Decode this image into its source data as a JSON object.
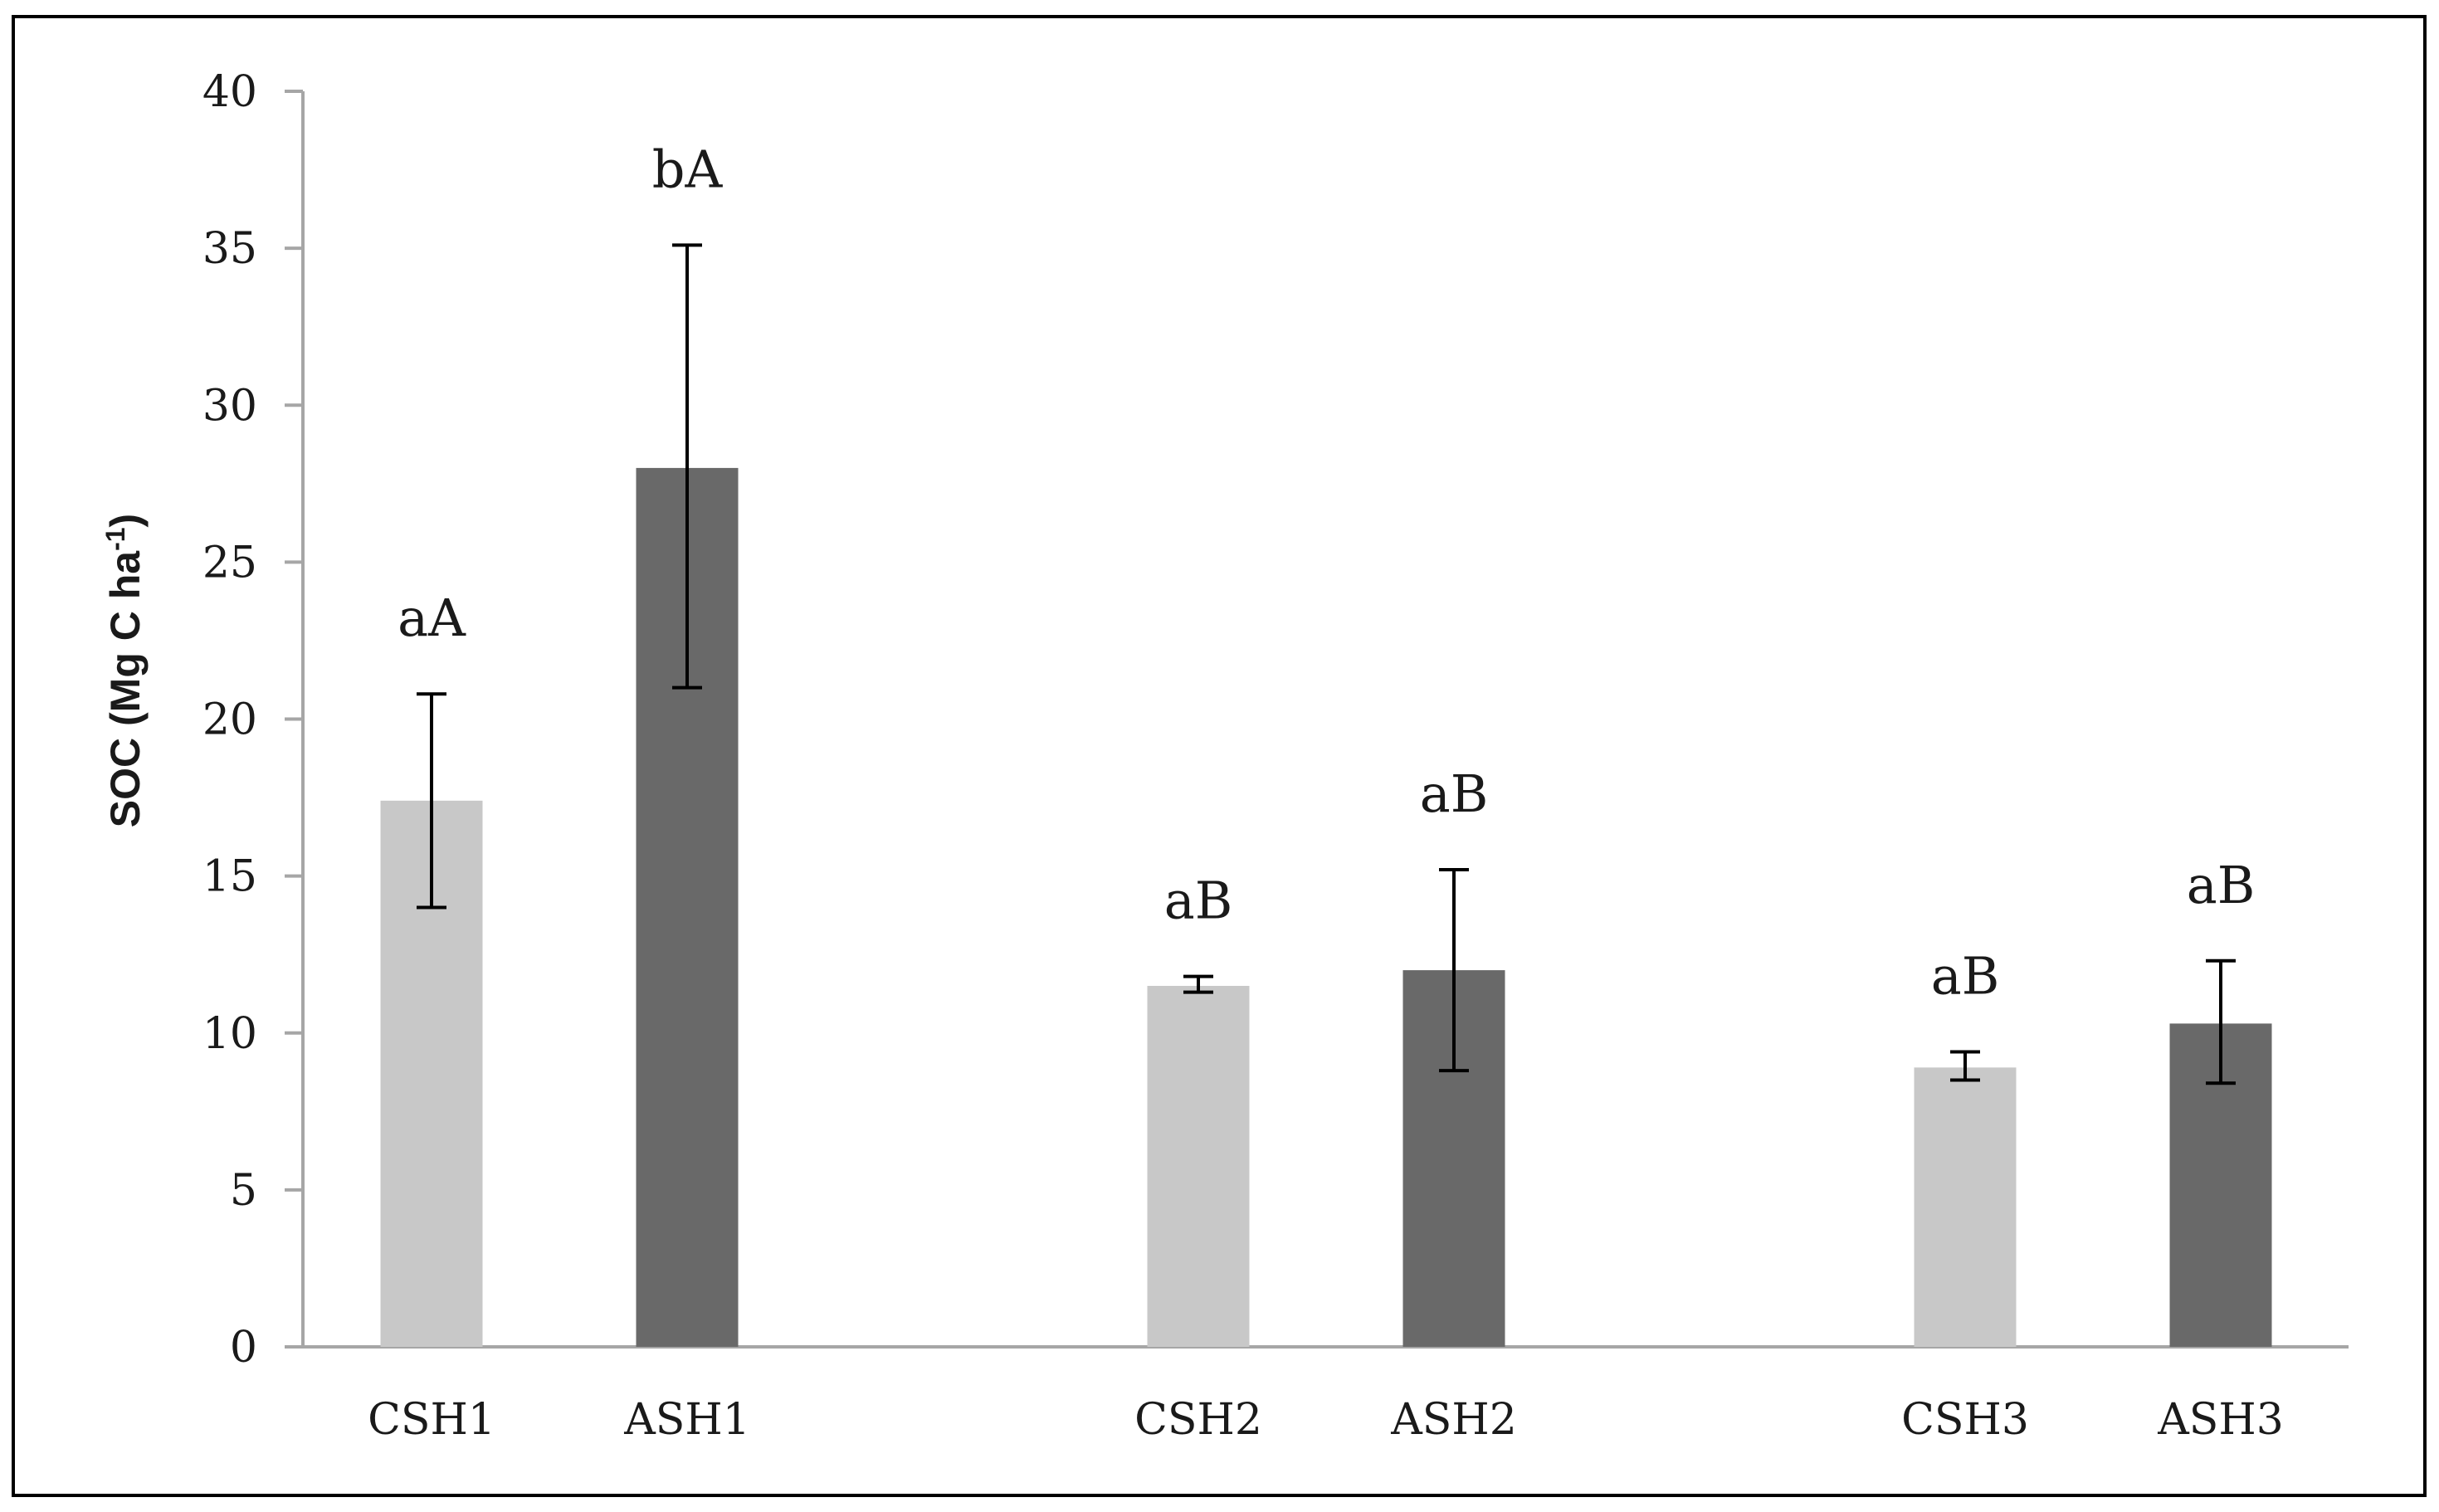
{
  "chart_data": {
    "type": "bar",
    "categories": [
      "CSH1",
      "ASH1",
      "CSH2",
      "ASH2",
      "CSH3",
      "ASH3"
    ],
    "values": [
      17.4,
      28.0,
      11.5,
      12.0,
      8.9,
      10.3
    ],
    "error_low": [
      14.0,
      21.0,
      11.3,
      8.8,
      8.5,
      8.4
    ],
    "error_high": [
      20.8,
      35.1,
      11.8,
      15.2,
      9.4,
      12.3
    ],
    "data_labels": [
      "aA",
      "bA",
      "aB",
      "aB",
      "aB",
      "aB"
    ],
    "ylabel": {
      "main": "SOC (Mg C ha",
      "sup": "-1",
      "close": ")"
    },
    "ylim": [
      0,
      40
    ],
    "yticks": [
      "0",
      "5",
      "10",
      "15",
      "20",
      "25",
      "30",
      "35",
      "40"
    ],
    "grid": false,
    "colors": {
      "CSH": "#c8c8c8",
      "ASH": "#696969",
      "axis": "#a6a6a6",
      "frame": "#000000",
      "error_bar": "#000000"
    }
  }
}
